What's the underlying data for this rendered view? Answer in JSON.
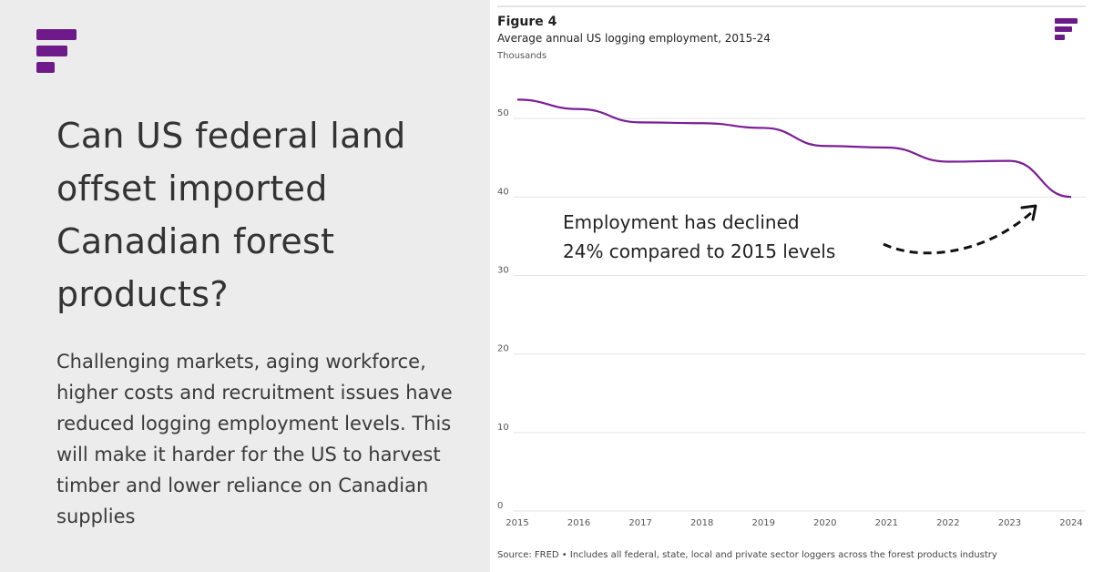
{
  "left": {
    "headline": "Can US federal land offset imported Canadian forest products?",
    "summary": "Challenging markets, aging workforce, higher costs and recruitment issues have reduced logging employment levels. This will make it harder for the US to harvest timber and lower reliance on Canadian supplies"
  },
  "figure": {
    "label": "Figure 4",
    "title": "Average annual US logging employment, 2015-24",
    "unit": "Thousands",
    "annotation_line1": "Employment has declined",
    "annotation_line2": "24% compared to 2015 levels",
    "source": "Source: FRED • Includes all federal, state, local and private sector loggers across the forest products industry"
  },
  "colors": {
    "brand": "#6f1a8a",
    "line": "#7a1e96",
    "grid": "#e3e3e3",
    "left_bg": "#ececec"
  },
  "icons": {
    "brand_logo": "brand-logo-icon",
    "annotation_arrow": "dashed-curved-arrow-icon"
  },
  "chart_data": {
    "type": "line",
    "x": [
      2015,
      2016,
      2017,
      2018,
      2019,
      2020,
      2021,
      2022,
      2023,
      2024
    ],
    "series": [
      {
        "values": [
          52.4,
          51.2,
          49.5,
          49.4,
          48.8,
          46.5,
          46.3,
          44.5,
          44.6,
          40.0
        ]
      }
    ],
    "y_ticks": [
      0,
      10,
      20,
      30,
      40,
      50
    ],
    "ylim": [
      0,
      55
    ],
    "xlim": [
      2015,
      2024
    ],
    "grid": true,
    "legend": false
  }
}
